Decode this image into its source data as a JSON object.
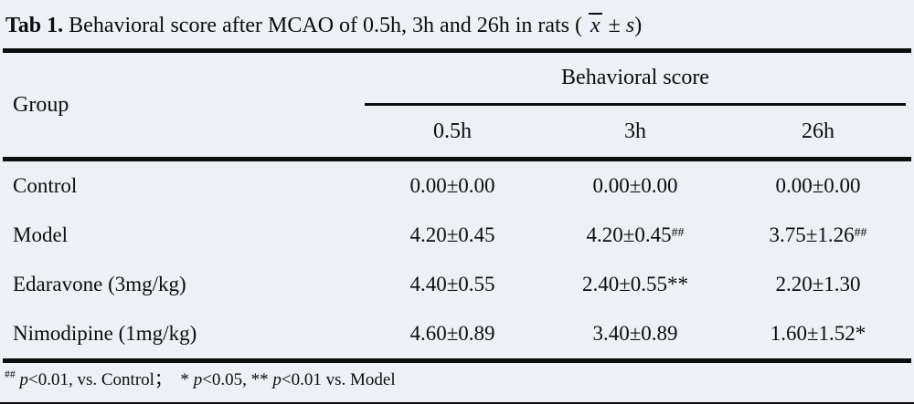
{
  "title": {
    "tag": "Tab 1.",
    "body": " Behavioral score after MCAO of 0.5h, 3h and 26h in rats ( ",
    "stat_x": "x",
    "stat_pm": " ± ",
    "stat_s": "s",
    "close": ")"
  },
  "table": {
    "group_header": "Group",
    "spanner": "Behavioral score",
    "columns": [
      "0.5h",
      "3h",
      "26h"
    ],
    "rows": [
      {
        "group": "Control",
        "values": [
          {
            "text": "0.00±0.00",
            "sup": ""
          },
          {
            "text": "0.00±0.00",
            "sup": ""
          },
          {
            "text": "0.00±0.00",
            "sup": ""
          }
        ]
      },
      {
        "group": "Model",
        "values": [
          {
            "text": "4.20±0.45",
            "sup": ""
          },
          {
            "text": "4.20±0.45",
            "sup": "##"
          },
          {
            "text": "3.75±1.26",
            "sup": "##"
          }
        ]
      },
      {
        "group": "Edaravone (3mg/kg)",
        "values": [
          {
            "text": "4.40±0.55",
            "sup": ""
          },
          {
            "text": "2.40±0.55**",
            "sup": ""
          },
          {
            "text": "2.20±1.30",
            "sup": ""
          }
        ]
      },
      {
        "group": "Nimodipine (1mg/kg)",
        "values": [
          {
            "text": "4.60±0.89",
            "sup": ""
          },
          {
            "text": "3.40±0.89",
            "sup": ""
          },
          {
            "text": "1.60±1.52*",
            "sup": ""
          }
        ]
      }
    ]
  },
  "footnote": {
    "segments": [
      {
        "t": "##",
        "style": "sup"
      },
      {
        "t": " ",
        "style": "plain"
      },
      {
        "t": "p",
        "style": "italic"
      },
      {
        "t": "<0.01, vs. Control；  * ",
        "style": "plain"
      },
      {
        "t": "p",
        "style": "italic"
      },
      {
        "t": "<0.05, ** ",
        "style": "plain"
      },
      {
        "t": "p",
        "style": "italic"
      },
      {
        "t": "<0.01 vs. Model",
        "style": "plain"
      }
    ]
  },
  "colors": {
    "background": "#edf0f4",
    "text": "#0d0d0d",
    "rule": "#0d0d0d"
  }
}
